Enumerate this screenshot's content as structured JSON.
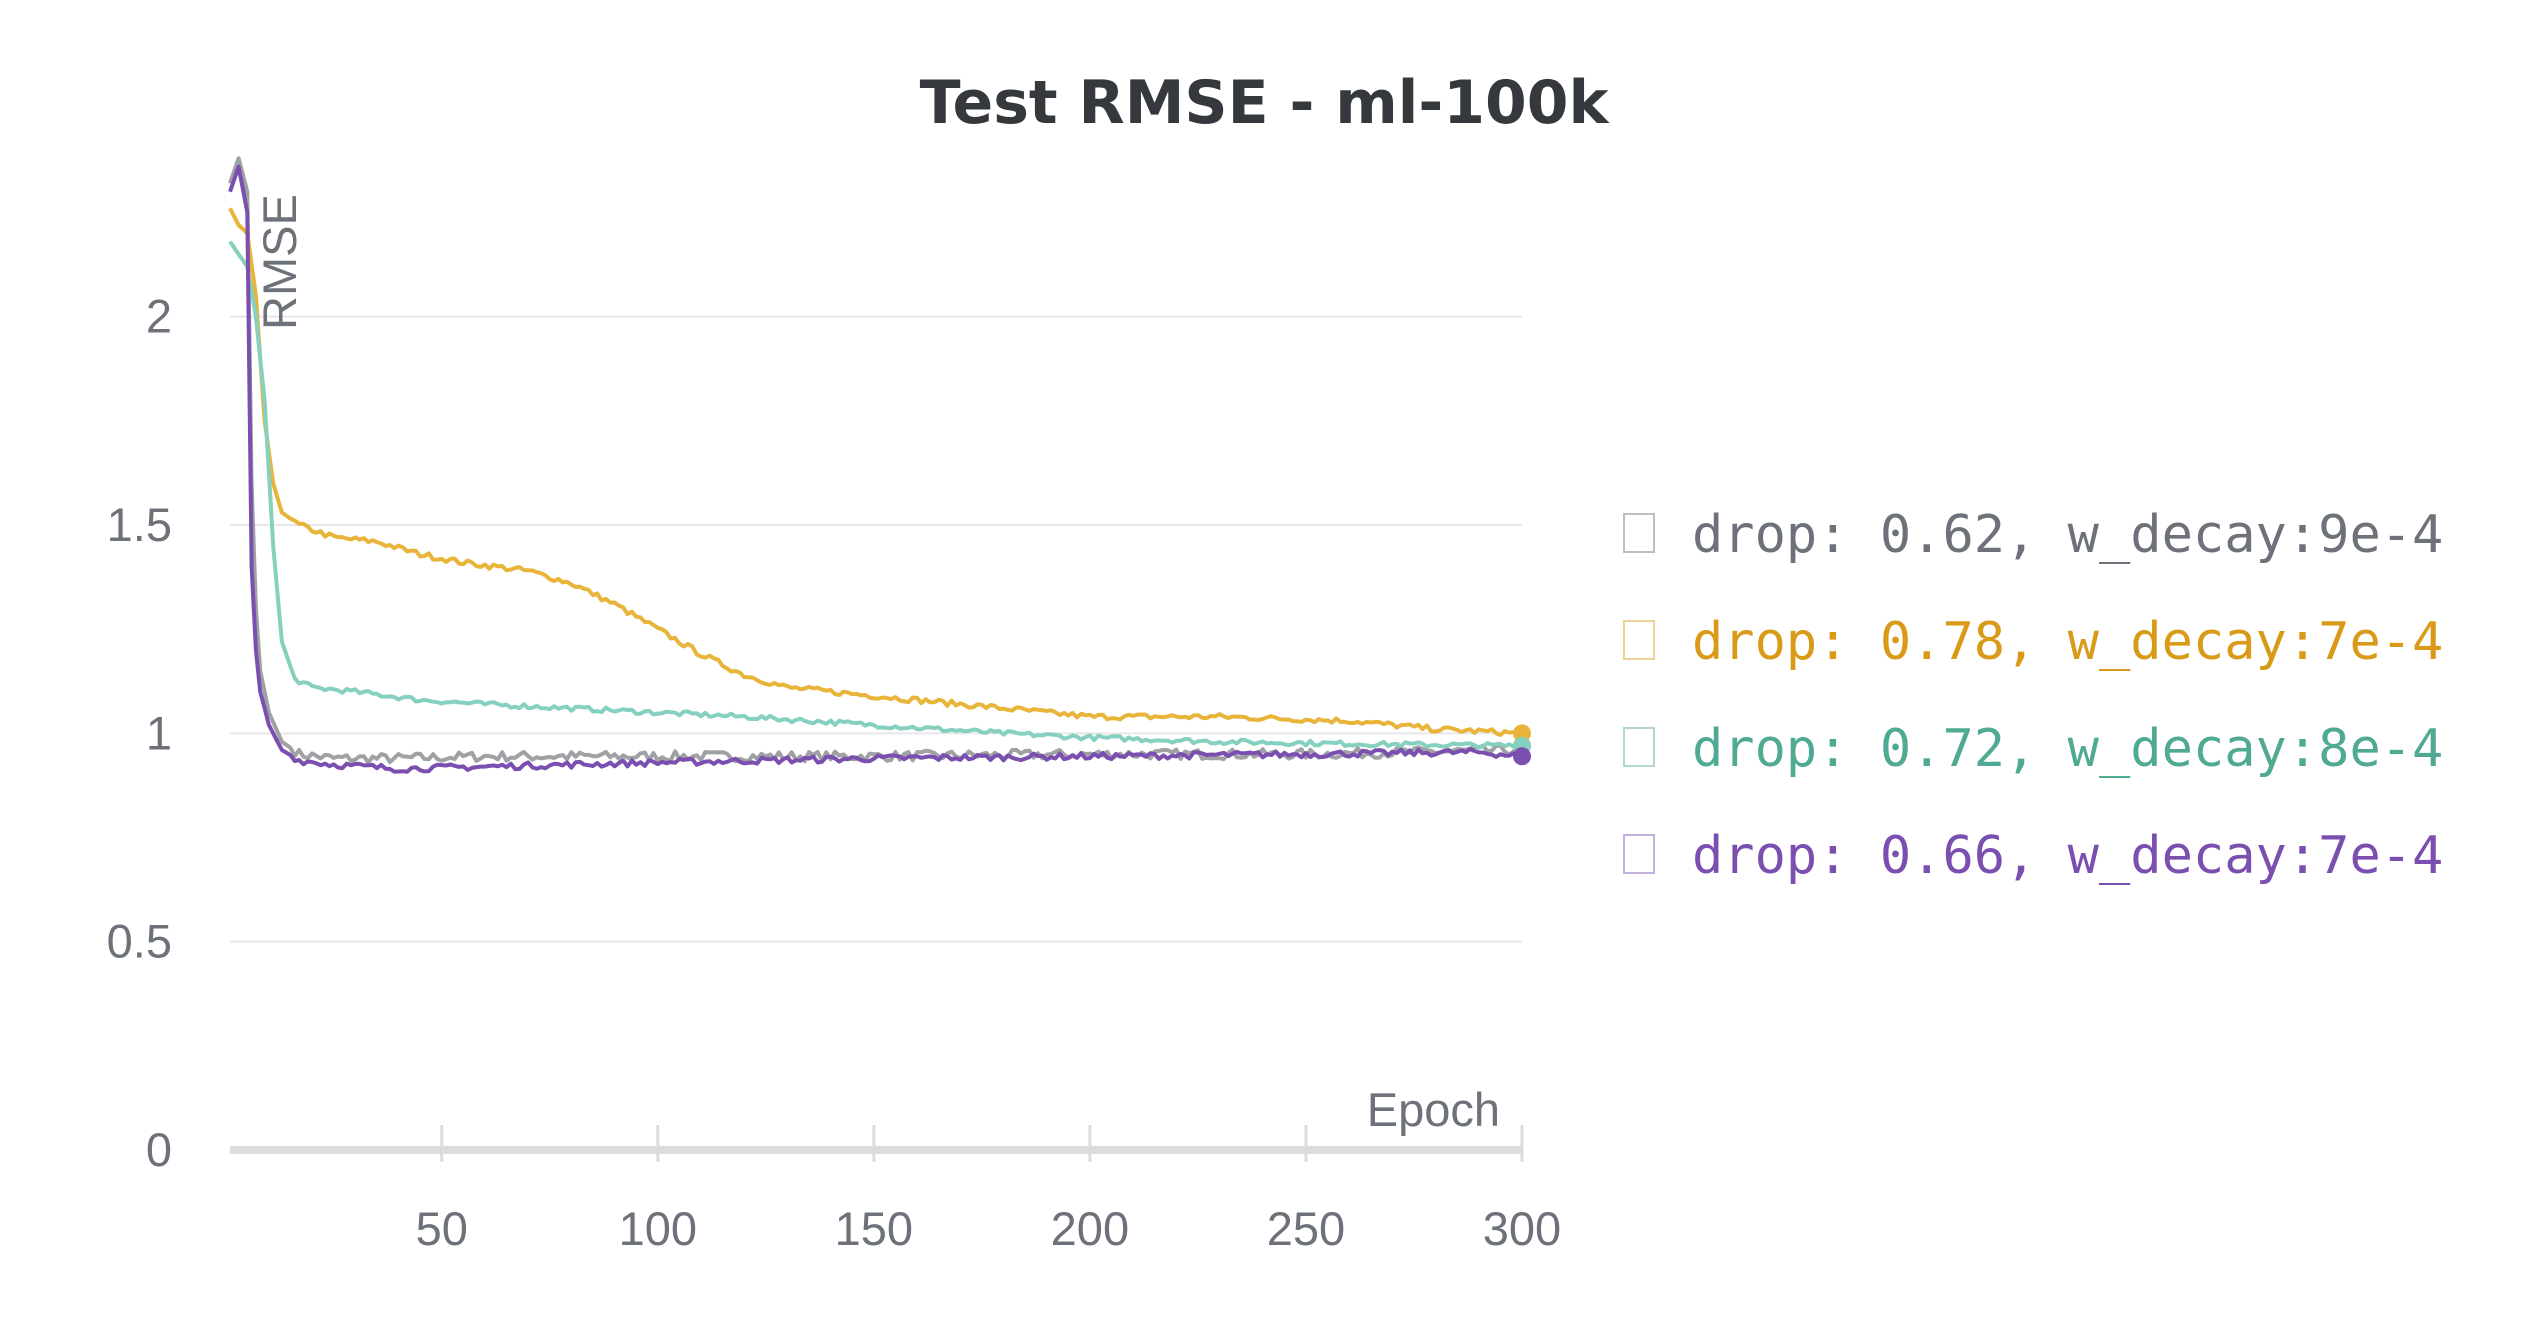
{
  "chart_data": {
    "type": "line",
    "title": "Test RMSE - ml-100k",
    "xlabel": "Epoch",
    "ylabel": "RMSE",
    "xlim": [
      1,
      300
    ],
    "ylim": [
      0,
      2.4
    ],
    "xticks": [
      50,
      100,
      150,
      200,
      250,
      300
    ],
    "yticks": [
      0,
      0.5,
      1,
      1.5,
      2
    ],
    "ytick_labels": [
      "0",
      "0.5",
      "1",
      "1.5",
      "2"
    ],
    "grid": true,
    "legend_position": "right",
    "series": [
      {
        "name": "drop: 0.62, w_decay:9e-4",
        "color": "#9fa1a5",
        "legend_color": "#6d7179",
        "noise": 0.012,
        "points": [
          [
            1,
            2.32
          ],
          [
            3,
            2.38
          ],
          [
            5,
            2.3
          ],
          [
            6,
            1.6
          ],
          [
            7,
            1.3
          ],
          [
            8,
            1.15
          ],
          [
            10,
            1.05
          ],
          [
            13,
            0.98
          ],
          [
            17,
            0.95
          ],
          [
            25,
            0.94
          ],
          [
            40,
            0.94
          ],
          [
            60,
            0.945
          ],
          [
            100,
            0.945
          ],
          [
            150,
            0.945
          ],
          [
            200,
            0.95
          ],
          [
            250,
            0.95
          ],
          [
            299,
            0.96
          ],
          [
            300,
            0.97
          ]
        ]
      },
      {
        "name": "drop: 0.78, w_decay:7e-4",
        "color": "#e8b53a",
        "legend_color": "#d99a18",
        "noise": 0.007,
        "points": [
          [
            1,
            2.26
          ],
          [
            3,
            2.22
          ],
          [
            5,
            2.2
          ],
          [
            7,
            2.05
          ],
          [
            9,
            1.75
          ],
          [
            11,
            1.6
          ],
          [
            13,
            1.53
          ],
          [
            17,
            1.5
          ],
          [
            25,
            1.47
          ],
          [
            35,
            1.46
          ],
          [
            45,
            1.43
          ],
          [
            55,
            1.41
          ],
          [
            70,
            1.39
          ],
          [
            80,
            1.36
          ],
          [
            90,
            1.31
          ],
          [
            100,
            1.25
          ],
          [
            110,
            1.19
          ],
          [
            120,
            1.14
          ],
          [
            130,
            1.11
          ],
          [
            140,
            1.1
          ],
          [
            150,
            1.09
          ],
          [
            170,
            1.07
          ],
          [
            190,
            1.05
          ],
          [
            200,
            1.04
          ],
          [
            230,
            1.04
          ],
          [
            260,
            1.03
          ],
          [
            280,
            1.01
          ],
          [
            300,
            1.0
          ]
        ]
      },
      {
        "name": "drop: 0.72, w_decay:8e-4",
        "color": "#86d0bf",
        "legend_color": "#4fa993",
        "noise": 0.006,
        "points": [
          [
            1,
            2.18
          ],
          [
            3,
            2.15
          ],
          [
            5,
            2.12
          ],
          [
            7,
            2.0
          ],
          [
            9,
            1.8
          ],
          [
            11,
            1.45
          ],
          [
            13,
            1.22
          ],
          [
            16,
            1.13
          ],
          [
            20,
            1.11
          ],
          [
            30,
            1.1
          ],
          [
            45,
            1.08
          ],
          [
            60,
            1.07
          ],
          [
            80,
            1.06
          ],
          [
            100,
            1.05
          ],
          [
            120,
            1.04
          ],
          [
            150,
            1.02
          ],
          [
            180,
            1.0
          ],
          [
            200,
            0.99
          ],
          [
            230,
            0.98
          ],
          [
            260,
            0.975
          ],
          [
            300,
            0.97
          ]
        ]
      },
      {
        "name": "drop: 0.66, w_decay:7e-4",
        "color": "#7b4fb0",
        "legend_color": "#7b4fb0",
        "noise": 0.008,
        "points": [
          [
            1,
            2.3
          ],
          [
            3,
            2.36
          ],
          [
            5,
            2.25
          ],
          [
            6,
            1.4
          ],
          [
            7,
            1.2
          ],
          [
            8,
            1.1
          ],
          [
            10,
            1.02
          ],
          [
            13,
            0.96
          ],
          [
            17,
            0.935
          ],
          [
            25,
            0.925
          ],
          [
            40,
            0.915
          ],
          [
            60,
            0.92
          ],
          [
            80,
            0.925
          ],
          [
            100,
            0.93
          ],
          [
            150,
            0.94
          ],
          [
            200,
            0.945
          ],
          [
            250,
            0.95
          ],
          [
            290,
            0.955
          ],
          [
            300,
            0.945
          ]
        ]
      }
    ]
  }
}
